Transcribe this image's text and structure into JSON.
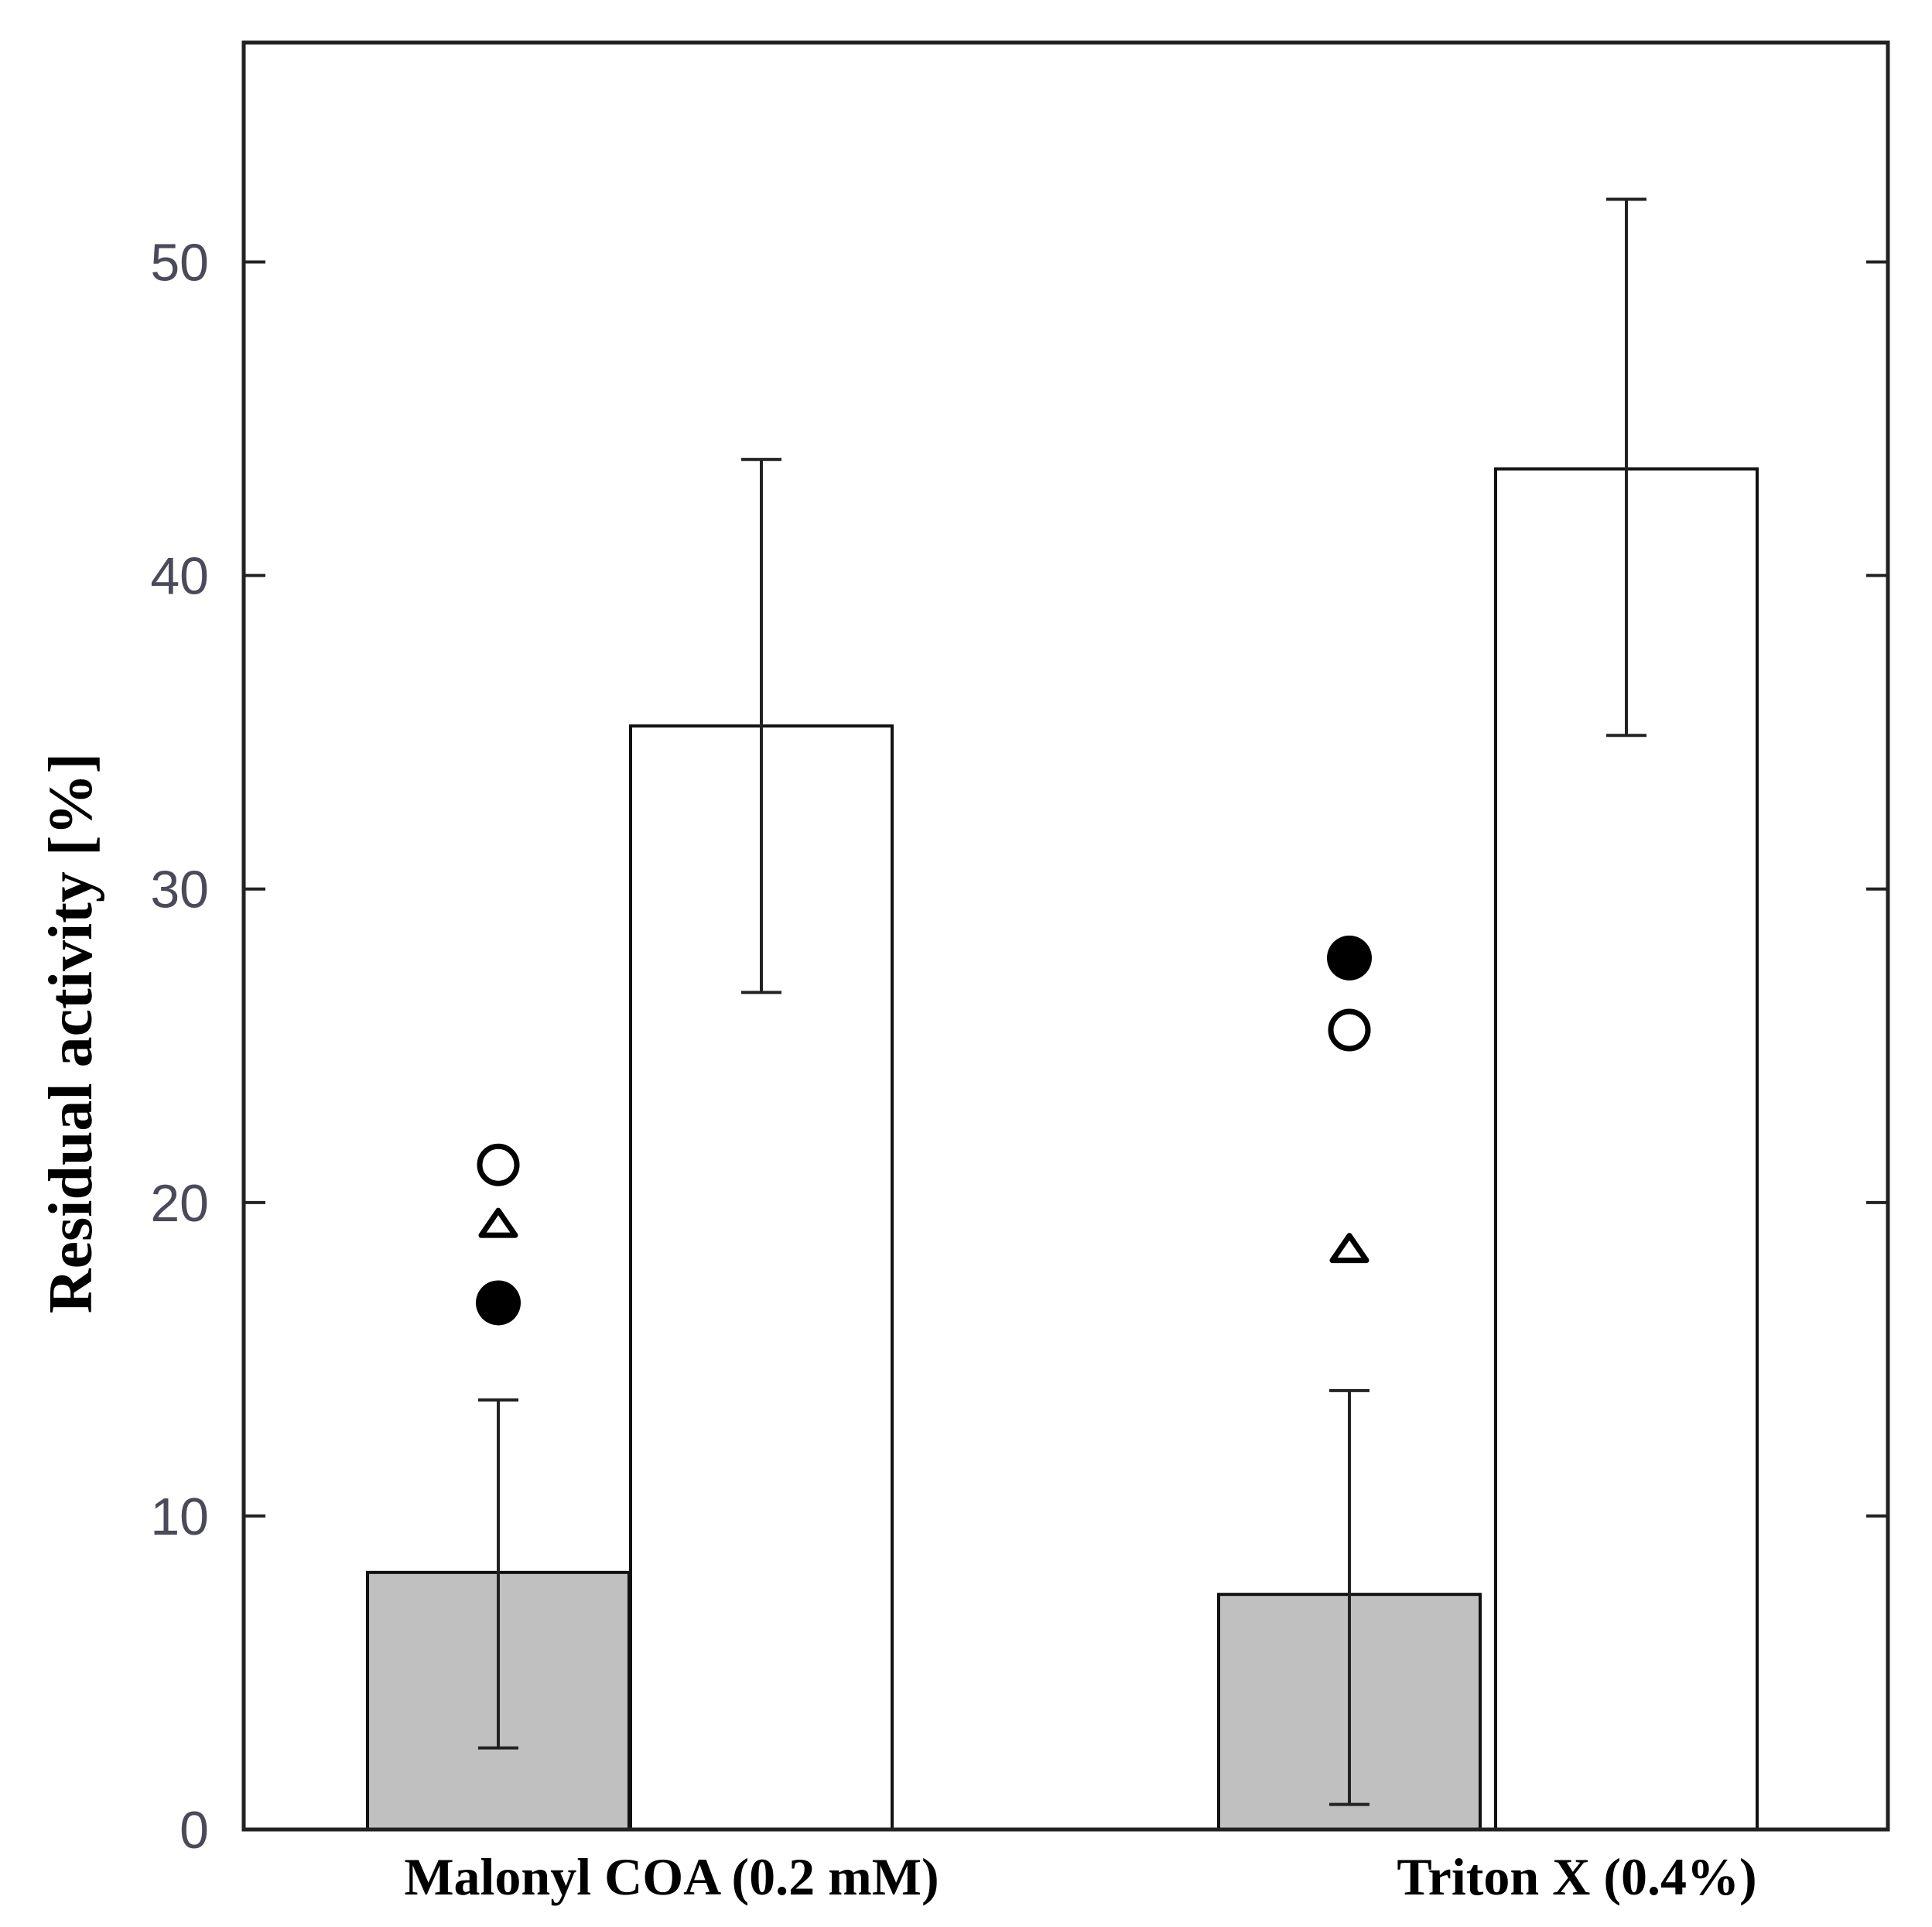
{
  "chart_data": {
    "type": "bar",
    "title": "",
    "xlabel": "",
    "ylabel": "Residual activity [%]",
    "ylim": [
      0,
      57
    ],
    "yticks": [
      0,
      10,
      20,
      30,
      40,
      50
    ],
    "grid": false,
    "categories": [
      "Malonyl  COA (0.2 mM)",
      "Triton  X (0.4%)"
    ],
    "series": [
      {
        "name": "gray bars",
        "color": "#c0c0c0",
        "values": [
          8.2,
          7.5
        ],
        "err_low": [
          2.6,
          0.8
        ],
        "err_high": [
          13.7,
          14.0
        ]
      },
      {
        "name": "white bars",
        "color": "#ffffff",
        "values": [
          35.2,
          43.4
        ],
        "err_low": [
          26.7,
          34.9
        ],
        "err_high": [
          43.7,
          52.0
        ]
      }
    ],
    "markers": [
      {
        "shape": "circle-open",
        "values": [
          21.2,
          25.5
        ]
      },
      {
        "shape": "triangle-open",
        "values": [
          19.3,
          18.5
        ]
      },
      {
        "shape": "circle-filled",
        "values": [
          16.8,
          27.8
        ]
      }
    ]
  }
}
